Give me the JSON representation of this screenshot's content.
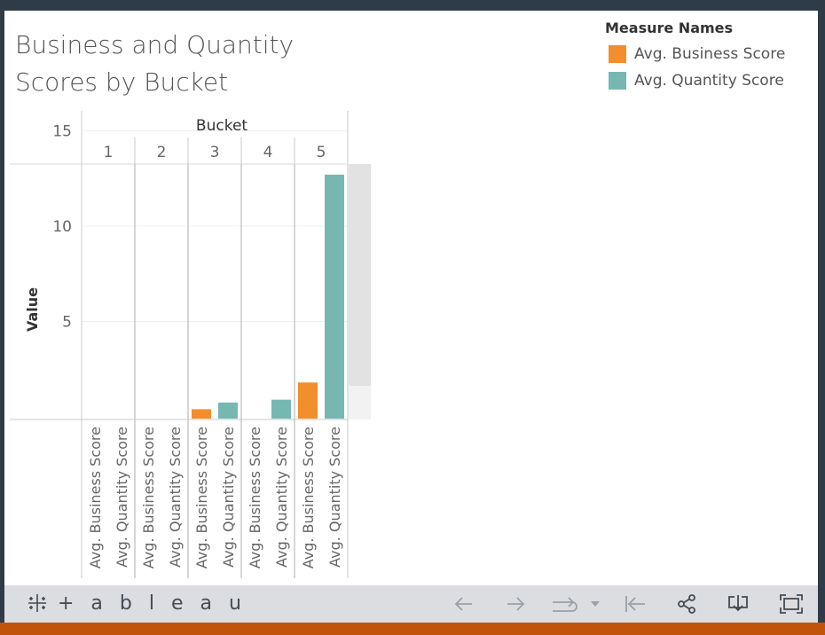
{
  "chart_data": {
    "type": "bar",
    "title": "Business and Quantity Scores by Bucket",
    "column_header": "Bucket",
    "buckets": [
      "1",
      "2",
      "3",
      "4",
      "5"
    ],
    "ylabel": "Value",
    "y_ticks": [
      5,
      10,
      15
    ],
    "legend_title": "Measure Names",
    "legend_position": "top-right",
    "series": [
      {
        "name": "Avg. Business Score",
        "color": "#f28e2b",
        "values": [
          0,
          0,
          0.4,
          0,
          1.8
        ]
      },
      {
        "name": "Avg. Quantity Score",
        "color": "#76b7b2",
        "values": [
          0,
          0,
          0.75,
          0.9,
          12.7
        ]
      }
    ]
  },
  "toolbar": {
    "logo_text": "+ a b l e a u",
    "logo_icon": "tableau-plus-icon",
    "buttons": [
      "undo-icon",
      "redo-icon",
      "revert-icon",
      "dropdown-arrow-icon",
      "reset-icon",
      "share-icon",
      "download-icon",
      "fullscreen-icon"
    ]
  }
}
